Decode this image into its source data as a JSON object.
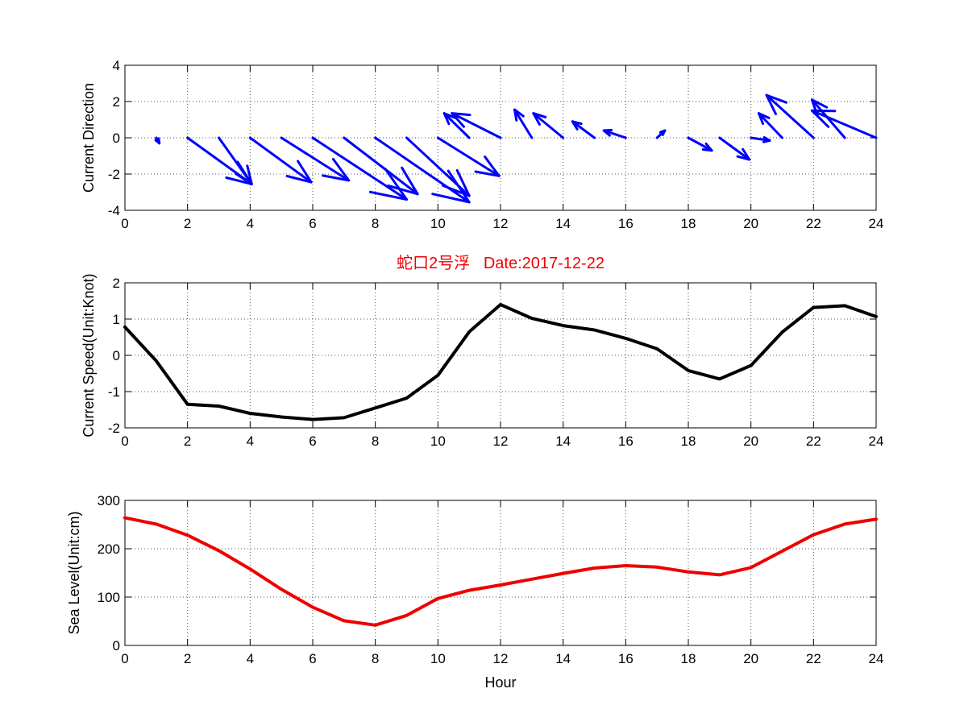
{
  "colors": {
    "quiver": "#0000ff",
    "speed": "#000000",
    "sea_level": "#ee0000",
    "title": "#ee0000"
  },
  "chart_data": [
    {
      "type": "quiver",
      "ylabel": "Current Direction",
      "xlim": [
        0,
        24
      ],
      "ylim": [
        -4,
        4
      ],
      "xticks": [
        0,
        2,
        4,
        6,
        8,
        10,
        12,
        14,
        16,
        18,
        20,
        22,
        24
      ],
      "yticks": [
        -4,
        -2,
        0,
        2,
        4
      ],
      "grid": true,
      "color": "#0000ff",
      "x": [
        0,
        1,
        2,
        3,
        4,
        5,
        6,
        7,
        8,
        9,
        10,
        11,
        12,
        13,
        14,
        15,
        16,
        17,
        18,
        19,
        20,
        21,
        22,
        23,
        24
      ],
      "u": [
        0,
        0.1,
        2.05,
        1.05,
        1.95,
        2.15,
        3.0,
        2.35,
        3.0,
        2.0,
        1.95,
        -0.8,
        -1.55,
        -0.55,
        -0.95,
        -0.7,
        -0.7,
        0.25,
        0.75,
        0.95,
        0.6,
        -0.75,
        -1.5,
        -1.05,
        -2.05
      ],
      "v": [
        0,
        -0.3,
        -2.55,
        -2.55,
        -2.45,
        -2.35,
        -3.4,
        -3.1,
        -3.55,
        -3.2,
        -2.1,
        1.35,
        1.35,
        1.55,
        1.35,
        0.9,
        0.4,
        0.4,
        -0.7,
        -1.2,
        -0.15,
        1.35,
        2.35,
        2.1,
        1.5
      ]
    },
    {
      "type": "line",
      "title": "蛇口2号浮   Date:2017-12-22",
      "ylabel": "Current Speed(Unit:Knot)",
      "xlim": [
        0,
        24
      ],
      "ylim": [
        -2,
        2
      ],
      "xticks": [
        0,
        2,
        4,
        6,
        8,
        10,
        12,
        14,
        16,
        18,
        20,
        22,
        24
      ],
      "yticks": [
        -2,
        -1,
        0,
        1,
        2
      ],
      "grid": true,
      "color": "#000000",
      "x": [
        0,
        1,
        2,
        3,
        4,
        5,
        6,
        7,
        8,
        9,
        10,
        11,
        12,
        13,
        14,
        15,
        16,
        17,
        18,
        19,
        20,
        21,
        22,
        23,
        24
      ],
      "y": [
        0.78,
        -0.15,
        -1.35,
        -1.4,
        -1.6,
        -1.7,
        -1.77,
        -1.72,
        -1.45,
        -1.18,
        -0.55,
        0.65,
        1.4,
        1.02,
        0.82,
        0.7,
        0.47,
        0.18,
        -0.42,
        -0.65,
        -0.28,
        0.64,
        1.32,
        1.37,
        1.07
      ]
    },
    {
      "type": "line",
      "ylabel": "Sea Level(Unit:cm)",
      "xlabel": "Hour",
      "xlim": [
        0,
        24
      ],
      "ylim": [
        0,
        300
      ],
      "xticks": [
        0,
        2,
        4,
        6,
        8,
        10,
        12,
        14,
        16,
        18,
        20,
        22,
        24
      ],
      "yticks": [
        0,
        100,
        200,
        300
      ],
      "grid": true,
      "color": "#ee0000",
      "x": [
        0,
        1,
        2,
        3,
        4,
        5,
        6,
        7,
        8,
        9,
        10,
        11,
        12,
        13,
        14,
        15,
        16,
        17,
        18,
        19,
        20,
        21,
        22,
        23,
        24
      ],
      "y": [
        264,
        251,
        228,
        196,
        158,
        116,
        79,
        51,
        42,
        62,
        97,
        114,
        125,
        137,
        149,
        160,
        165,
        162,
        152,
        146,
        161,
        195,
        229,
        251,
        261
      ]
    }
  ]
}
